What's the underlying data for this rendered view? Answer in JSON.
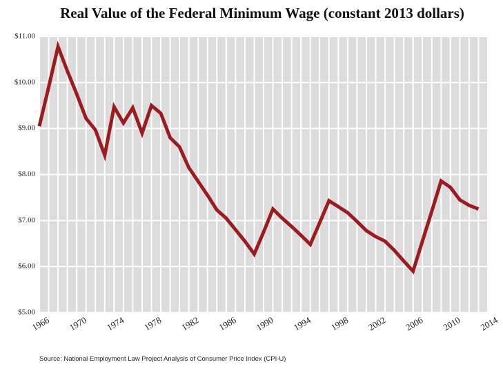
{
  "chart_data": {
    "type": "line",
    "title": "Real Value of the Federal Minimum Wage (constant 2013 dollars)",
    "source": "Source: National Employment Law Project Analysis of Consumer Price Index (CPI-U)",
    "x": [
      1966,
      1967,
      1968,
      1969,
      1970,
      1971,
      1972,
      1973,
      1974,
      1975,
      1976,
      1977,
      1978,
      1979,
      1980,
      1981,
      1982,
      1983,
      1984,
      1985,
      1986,
      1987,
      1988,
      1989,
      1990,
      1991,
      1992,
      1993,
      1994,
      1995,
      1996,
      1997,
      1998,
      1999,
      2000,
      2001,
      2002,
      2003,
      2004,
      2005,
      2006,
      2007,
      2008,
      2009,
      2010,
      2011,
      2012,
      2013
    ],
    "series": [
      {
        "color": "#9b1c1f",
        "values": [
          9.05,
          9.9,
          10.78,
          10.25,
          9.75,
          9.22,
          8.97,
          8.42,
          9.47,
          9.12,
          9.45,
          8.9,
          9.5,
          9.33,
          8.8,
          8.6,
          8.15,
          7.85,
          7.55,
          7.23,
          7.05,
          6.8,
          6.55,
          6.27,
          6.75,
          7.25,
          7.05,
          6.87,
          6.68,
          6.48,
          6.95,
          7.43,
          7.3,
          7.17,
          6.98,
          6.78,
          6.65,
          6.55,
          6.35,
          6.12,
          5.9,
          6.55,
          7.2,
          7.86,
          7.72,
          7.45,
          7.33,
          7.25
        ]
      }
    ],
    "xlim": [
      1966,
      2014
    ],
    "xticks": [
      1966,
      1970,
      1974,
      1978,
      1982,
      1986,
      1990,
      1994,
      1998,
      2002,
      2006,
      2010,
      2014
    ],
    "ylim": [
      5,
      11
    ],
    "yticks": [
      {
        "value": 5,
        "label": "$5.00"
      },
      {
        "value": 6,
        "label": "$6.00"
      },
      {
        "value": 7,
        "label": "$7.00"
      },
      {
        "value": 8,
        "label": "$8.00"
      },
      {
        "value": 9,
        "label": "$9.00"
      },
      {
        "value": 10,
        "label": "$10.00"
      },
      {
        "value": 11,
        "label": "$11.00"
      }
    ],
    "grid": true
  }
}
